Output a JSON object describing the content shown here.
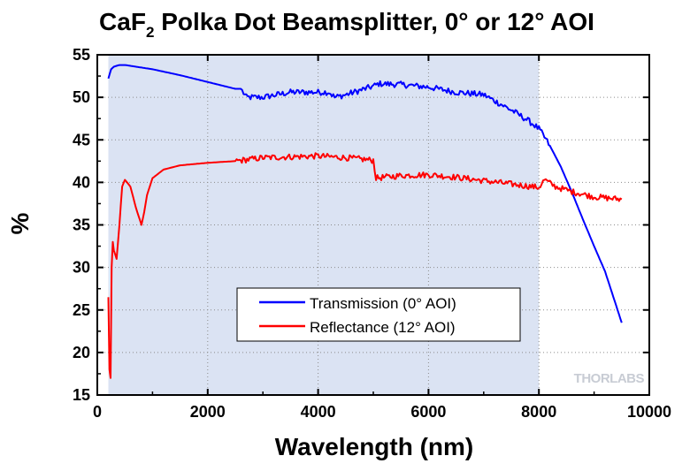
{
  "chart_data": {
    "type": "line",
    "title_main": "CaF",
    "title_sub": "2",
    "title_rest": " Polka Dot Beamsplitter, 0° or 12° AOI",
    "xlabel": "Wavelength (nm)",
    "ylabel": "%",
    "xlim": [
      0,
      10000
    ],
    "ylim": [
      15,
      55
    ],
    "x_ticks": [
      0,
      2000,
      4000,
      6000,
      8000,
      10000
    ],
    "y_ticks": [
      15,
      20,
      25,
      30,
      35,
      40,
      45,
      50,
      55
    ],
    "shaded_region": [
      200,
      8000
    ],
    "shade_color": "#dbe3f3",
    "grid": true,
    "legend_position": "lower-center",
    "watermark": "THORLABS",
    "series": [
      {
        "name": "Transmission (0° AOI)",
        "color": "#0000ff",
        "x": [
          200,
          250,
          300,
          400,
          500,
          600,
          800,
          1000,
          1500,
          2000,
          2500,
          2600,
          2700,
          3000,
          3500,
          4000,
          4200,
          4300,
          4500,
          5000,
          5100,
          5500,
          6000,
          6500,
          7000,
          7500,
          7800,
          8000,
          8200,
          8400,
          8600,
          8800,
          9000,
          9200,
          9400,
          9500
        ],
        "y": [
          52.2,
          53.3,
          53.6,
          53.8,
          53.8,
          53.7,
          53.5,
          53.3,
          52.6,
          51.8,
          51.0,
          51.0,
          50.0,
          50.0,
          50.6,
          50.6,
          50.6,
          50.0,
          50.3,
          51.3,
          51.6,
          51.5,
          51.2,
          50.6,
          50.3,
          48.5,
          47.3,
          46.3,
          44.3,
          41.8,
          38.8,
          35.6,
          32.5,
          29.5,
          25.5,
          23.5
        ]
      },
      {
        "name": "Reflectance (12° AOI)",
        "color": "#ff0000",
        "x": [
          200,
          220,
          240,
          260,
          280,
          300,
          350,
          400,
          450,
          500,
          600,
          700,
          800,
          850,
          900,
          1000,
          1200,
          1500,
          2000,
          2500,
          3000,
          3500,
          4000,
          4500,
          5000,
          5050,
          5500,
          6000,
          6500,
          7000,
          7500,
          8000,
          8100,
          8300,
          8600,
          9000,
          9500
        ],
        "y": [
          26.5,
          18.0,
          17.0,
          30.0,
          33.0,
          32.0,
          31.0,
          35.0,
          39.5,
          40.3,
          39.5,
          37.0,
          35.0,
          36.5,
          38.5,
          40.5,
          41.5,
          42.0,
          42.3,
          42.5,
          42.9,
          43.0,
          43.1,
          42.9,
          42.6,
          40.5,
          40.8,
          40.9,
          40.6,
          40.2,
          39.8,
          39.4,
          40.3,
          39.5,
          38.9,
          38.3,
          38.0
        ]
      }
    ]
  }
}
